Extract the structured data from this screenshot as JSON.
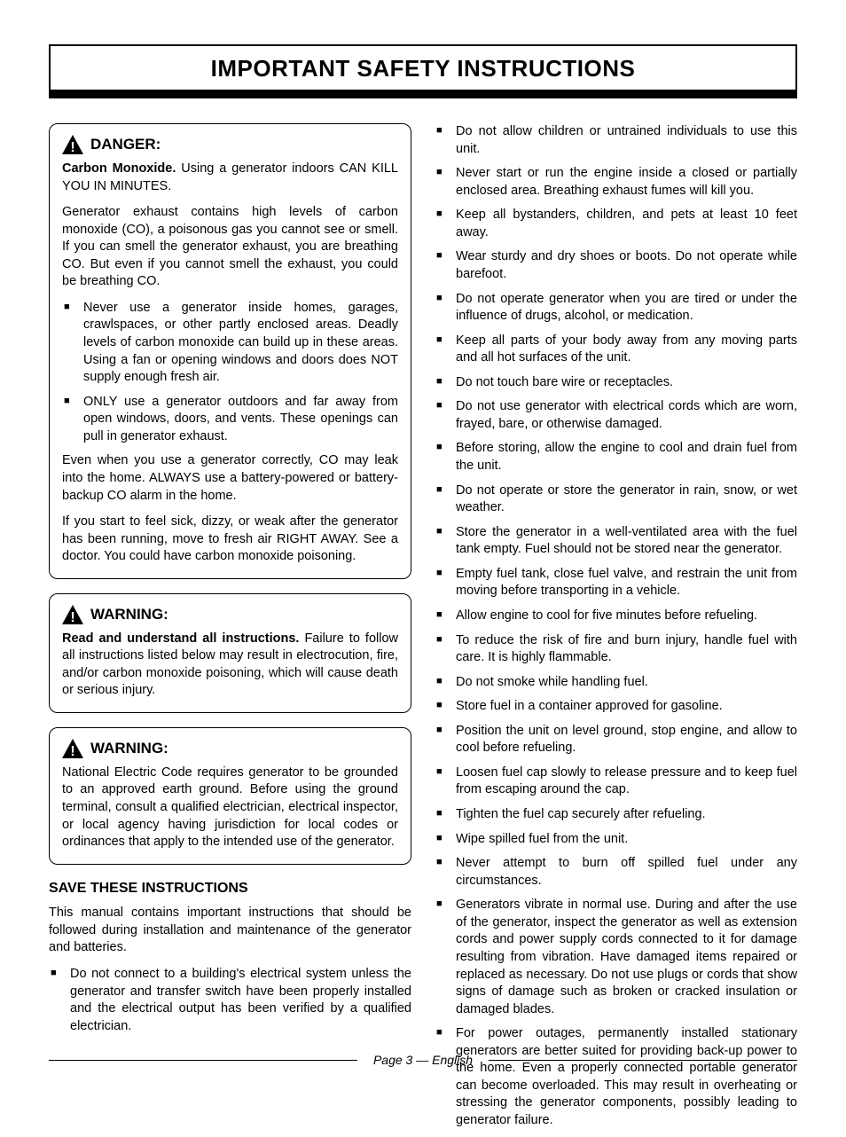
{
  "page": {
    "title": "IMPORTANT SAFETY INSTRUCTIONS",
    "footer": "Page 3 — English"
  },
  "danger": {
    "heading": "DANGER:",
    "lead_bold": "Carbon Monoxide.",
    "lead_rest": " Using a generator indoors CAN KILL YOU IN MINUTES.",
    "p1": "Generator exhaust contains high levels of carbon monoxide (CO), a poisonous gas you cannot see or smell. If you can smell the generator exhaust, you are breathing CO. But even if you cannot smell the exhaust, you could be breathing CO.",
    "bullets": [
      "Never use a generator inside homes, garages, crawlspaces, or other partly enclosed areas. Deadly levels of carbon monoxide can build up in these areas. Using a fan or opening windows and doors does NOT supply enough fresh air.",
      "ONLY use a generator outdoors and far away from open windows, doors, and vents. These openings can pull in generator exhaust."
    ],
    "p2": "Even when you use a generator correctly, CO may leak into the home. ALWAYS use a battery-powered or battery-backup CO alarm in the home.",
    "p3": "If you start to feel sick, dizzy, or weak after the generator has been running, move to fresh air RIGHT AWAY. See a doctor. You could have carbon monoxide poisoning."
  },
  "warning1": {
    "heading": "WARNING:",
    "lead_bold": "Read and understand all instructions.",
    "lead_rest": " Failure to follow all instructions listed below may result in electrocution, fire, and/or carbon monoxide poisoning, which will cause death or serious injury."
  },
  "warning2": {
    "heading": "WARNING:",
    "body": "National Electric Code requires generator to be grounded to an approved earth ground. Before using the ground terminal, consult a qualified electrician, electrical inspector, or local agency having jurisdiction for local codes or ordinances that apply to the intended use of the generator."
  },
  "save": {
    "heading": "SAVE THESE INSTRUCTIONS",
    "intro": "This manual contains important instructions that should be followed during installation and maintenance of the generator and batteries.",
    "bullets_left": [
      "Do not connect to a building's electrical system unless the generator and transfer switch have been properly installed and the electrical output has been verified by a qualified electrician."
    ]
  },
  "right_bullets": [
    "Do not allow children or untrained individuals to use this unit.",
    "Never start or run the engine inside a closed or partially enclosed area. Breathing exhaust fumes will kill you.",
    "Keep all bystanders, children, and pets at least 10 feet away.",
    "Wear sturdy and dry shoes or boots. Do not operate while barefoot.",
    "Do not operate generator when you are tired or under the influence of drugs, alcohol, or medication.",
    "Keep all parts of your body away from any moving parts and all hot surfaces of the unit.",
    "Do not touch bare wire or receptacles.",
    "Do not use generator with electrical cords which are worn, frayed, bare, or otherwise damaged.",
    "Before storing, allow the engine to cool and drain fuel from the unit.",
    "Do not operate or store the generator in rain, snow, or wet weather.",
    "Store the generator in a well-ventilated area with the fuel tank empty. Fuel should not be stored near the generator.",
    "Empty fuel tank, close fuel valve, and restrain the unit from moving before transporting in a vehicle.",
    "Allow engine to cool for five minutes before refueling.",
    "To reduce the risk of fire and burn injury, handle fuel with care. It is highly flammable.",
    "Do not smoke while handling fuel.",
    "Store fuel in a container approved for gasoline.",
    "Position the unit on level ground, stop engine, and allow to cool before refueling.",
    "Loosen fuel cap slowly to release pressure and to keep fuel from escaping around the cap.",
    "Tighten the fuel cap securely after refueling.",
    "Wipe spilled fuel from the unit.",
    "Never attempt to burn off spilled fuel under any circumstances.",
    "Generators vibrate in normal use. During and after the use of the generator, inspect the generator as well as extension cords and power supply cords connected to it for damage resulting from vibration. Have damaged items repaired or replaced as necessary. Do not use plugs or cords that show signs of damage such as broken or cracked insulation or damaged blades.",
    "For power outages, permanently installed stationary generators are better suited for providing back-up power to the home. Even a properly connected portable generator can become overloaded. This may result in overheating or stressing the generator components, possibly leading to generator failure."
  ]
}
